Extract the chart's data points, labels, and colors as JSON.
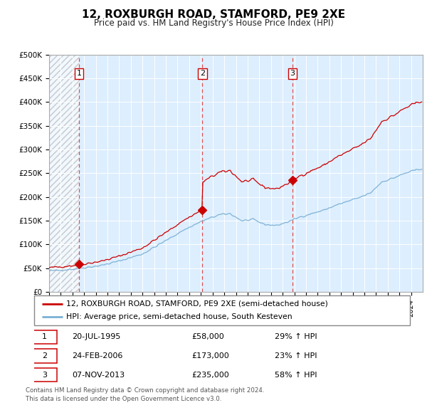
{
  "title": "12, ROXBURGH ROAD, STAMFORD, PE9 2XE",
  "subtitle": "Price paid vs. HM Land Registry's House Price Index (HPI)",
  "ylabel_ticks": [
    "£0",
    "£50K",
    "£100K",
    "£150K",
    "£200K",
    "£250K",
    "£300K",
    "£350K",
    "£400K",
    "£450K",
    "£500K"
  ],
  "ytick_values": [
    0,
    50000,
    100000,
    150000,
    200000,
    250000,
    300000,
    350000,
    400000,
    450000,
    500000
  ],
  "ylim": [
    0,
    500000
  ],
  "xlim_start": 1993.0,
  "xlim_end": 2025.0,
  "sale_years": [
    1995.55,
    2006.12,
    2013.85
  ],
  "sale_prices": [
    58000,
    173000,
    235000
  ],
  "sale_labels": [
    "1",
    "2",
    "3"
  ],
  "legend_entry1": "12, ROXBURGH ROAD, STAMFORD, PE9 2XE (semi-detached house)",
  "legend_entry2": "HPI: Average price, semi-detached house, South Kesteven",
  "footer1": "Contains HM Land Registry data © Crown copyright and database right 2024.",
  "footer2": "This data is licensed under the Open Government Licence v3.0.",
  "table_rows": [
    [
      "1",
      "20-JUL-1995",
      "£58,000",
      "29% ↑ HPI"
    ],
    [
      "2",
      "24-FEB-2006",
      "£173,000",
      "23% ↑ HPI"
    ],
    [
      "3",
      "07-NOV-2013",
      "£235,000",
      "58% ↑ HPI"
    ]
  ],
  "price_line_color": "#cc0000",
  "hpi_line_color": "#7ab0d4",
  "plot_bg_color": "#ddeeff",
  "grid_color": "#ffffff",
  "hatch_region_end": 1995.55
}
